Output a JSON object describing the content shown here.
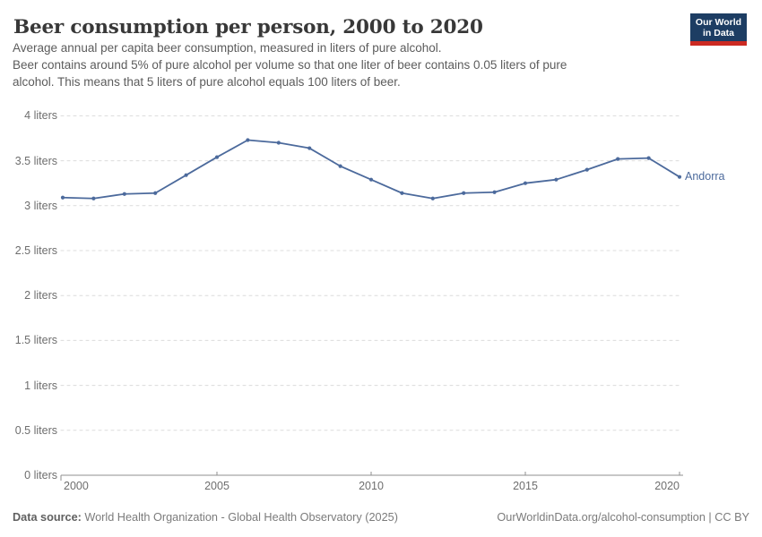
{
  "header": {
    "title": "Beer consumption per person, 2000 to 2020",
    "subtitle_lines": [
      "Average annual per capita beer consumption, measured in liters of pure alcohol.",
      "Beer contains around 5% of pure alcohol per volume so that one liter of beer contains 0.05 liters of pure",
      "alcohol. This means that 5 liters of pure alcohol equals 100 liters of beer."
    ],
    "logo": {
      "line1": "Our World",
      "line2": "in Data",
      "bg_color": "#1d3d63",
      "bar_color": "#cc2a22"
    }
  },
  "chart_data": {
    "type": "line",
    "title": "Beer consumption per person, 2000 to 2020",
    "x": [
      2000,
      2001,
      2002,
      2003,
      2004,
      2005,
      2006,
      2007,
      2008,
      2009,
      2010,
      2011,
      2012,
      2013,
      2014,
      2015,
      2016,
      2017,
      2018,
      2019,
      2020
    ],
    "series": [
      {
        "name": "Andorra",
        "color": "#4C6A9C",
        "values": [
          3.09,
          3.08,
          3.13,
          3.14,
          3.34,
          3.54,
          3.73,
          3.7,
          3.64,
          3.44,
          3.29,
          3.14,
          3.08,
          3.14,
          3.15,
          3.25,
          3.29,
          3.4,
          3.52,
          3.53,
          3.32
        ]
      }
    ],
    "ylabel": "liters of pure alcohol",
    "ylim": [
      0,
      4
    ],
    "xlim": [
      2000,
      2020
    ],
    "y_ticks": [
      0,
      0.5,
      1,
      1.5,
      2,
      2.5,
      3,
      3.5,
      4
    ],
    "y_tick_labels": [
      "0 liters",
      "0.5 liters",
      "1 liters",
      "1.5 liters",
      "2 liters",
      "2.5 liters",
      "3 liters",
      "3.5 liters",
      "4 liters"
    ],
    "x_tick_years": [
      2000,
      2005,
      2010,
      2015,
      2020
    ],
    "x_tick_labels": [
      "2000",
      "2005",
      "2010",
      "2015",
      "2020"
    ],
    "grid": "horizontal-dashed",
    "legend_position": "end-of-line",
    "theme": {
      "grid_color": "#dcdcdc",
      "axis_color": "#8f8f8f",
      "tick_text_color": "#6e6e6e"
    }
  },
  "footer": {
    "source_label": "Data source:",
    "source_text": " World Health Organization - Global Health Observatory (2025)",
    "link_text": "OurWorldinData.org/alcohol-consumption | CC BY"
  }
}
